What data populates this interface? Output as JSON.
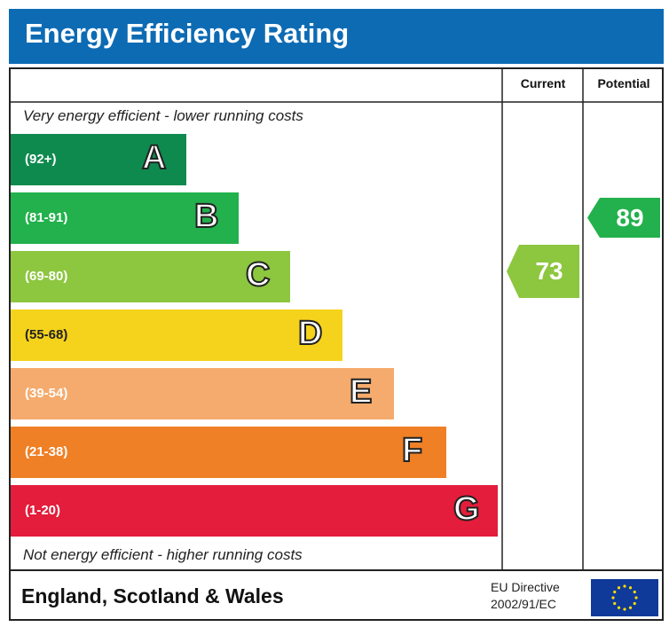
{
  "header": {
    "title": "Energy Efficiency Rating"
  },
  "columns": {
    "current": "Current",
    "potential": "Potential"
  },
  "captions": {
    "top": "Very energy efficient - lower running costs",
    "bottom": "Not energy efficient - higher running costs"
  },
  "footer": {
    "region": "England, Scotland & Wales",
    "directive_line1": "EU Directive",
    "directive_line2": "2002/91/EC",
    "flag_icon": "eu-flag-icon"
  },
  "chart_data": {
    "type": "bar",
    "title": "Energy Efficiency Rating",
    "bands": [
      {
        "letter": "A",
        "range": "(92+)",
        "color": "#0f8a4f"
      },
      {
        "letter": "B",
        "range": "(81-91)",
        "color": "#22b14c"
      },
      {
        "letter": "C",
        "range": "(69-80)",
        "color": "#8dc63f"
      },
      {
        "letter": "D",
        "range": "(55-68)",
        "color": "#f5d31c"
      },
      {
        "letter": "E",
        "range": "(39-54)",
        "color": "#f5ab6d"
      },
      {
        "letter": "F",
        "range": "(21-38)",
        "color": "#ef8026"
      },
      {
        "letter": "G",
        "range": "(1-20)",
        "color": "#e31d3b"
      }
    ],
    "current": {
      "value": "73",
      "band": "C",
      "color": "#8dc63f"
    },
    "potential": {
      "value": "89",
      "band": "B",
      "color": "#22b14c"
    }
  }
}
